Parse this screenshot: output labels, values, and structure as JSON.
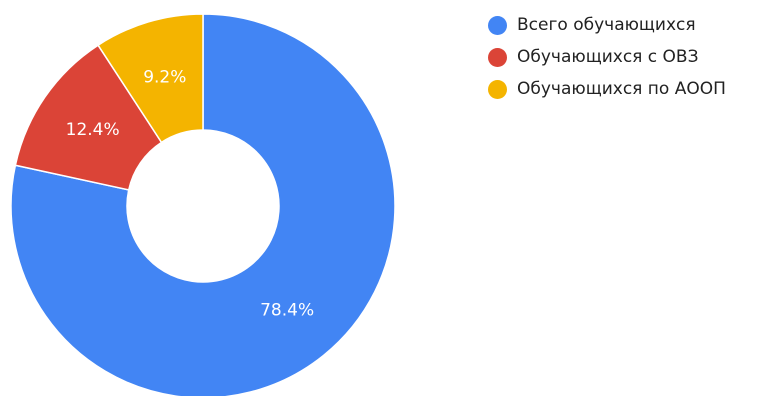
{
  "chart_data": {
    "type": "pie",
    "donut": true,
    "title": "",
    "legend_position": "right",
    "slices": [
      {
        "label": "Всего обучающихся",
        "value": 78.4,
        "value_label": "78.4%",
        "color": "#4285f4"
      },
      {
        "label": "Обучающихся с ОВЗ",
        "value": 12.4,
        "value_label": "12.4%",
        "color": "#db4437"
      },
      {
        "label": "Обучающихся по АООП",
        "value": 9.2,
        "value_label": "9.2%",
        "color": "#f4b400"
      }
    ]
  }
}
